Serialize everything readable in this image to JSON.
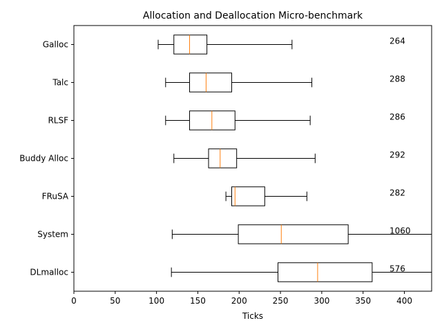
{
  "chart_data": {
    "type": "boxplot",
    "title": "Allocation and Deallocation Micro-benchmark",
    "x_label": "Ticks",
    "categories": [
      "Galloc",
      "Talc",
      "RLSF",
      "Buddy Alloc",
      "FRuSA",
      "System",
      "DLmalloc"
    ],
    "low": [
      102,
      111,
      111,
      121,
      184,
      119,
      118
    ],
    "q1": [
      121,
      140,
      140,
      163,
      191,
      199,
      247
    ],
    "median": [
      140,
      160,
      167,
      177,
      195,
      251,
      295
    ],
    "q3": [
      161,
      191,
      195,
      197,
      231,
      332,
      361
    ],
    "high": [
      264,
      288,
      286,
      292,
      282,
      1060,
      576
    ],
    "box_color": "#000000",
    "median_color": "#ff7f0e",
    "xlim": [
      0,
      433
    ],
    "xticks": [
      0,
      50,
      100,
      150,
      200,
      250,
      300,
      350,
      400
    ],
    "annotation_x": 382
  }
}
